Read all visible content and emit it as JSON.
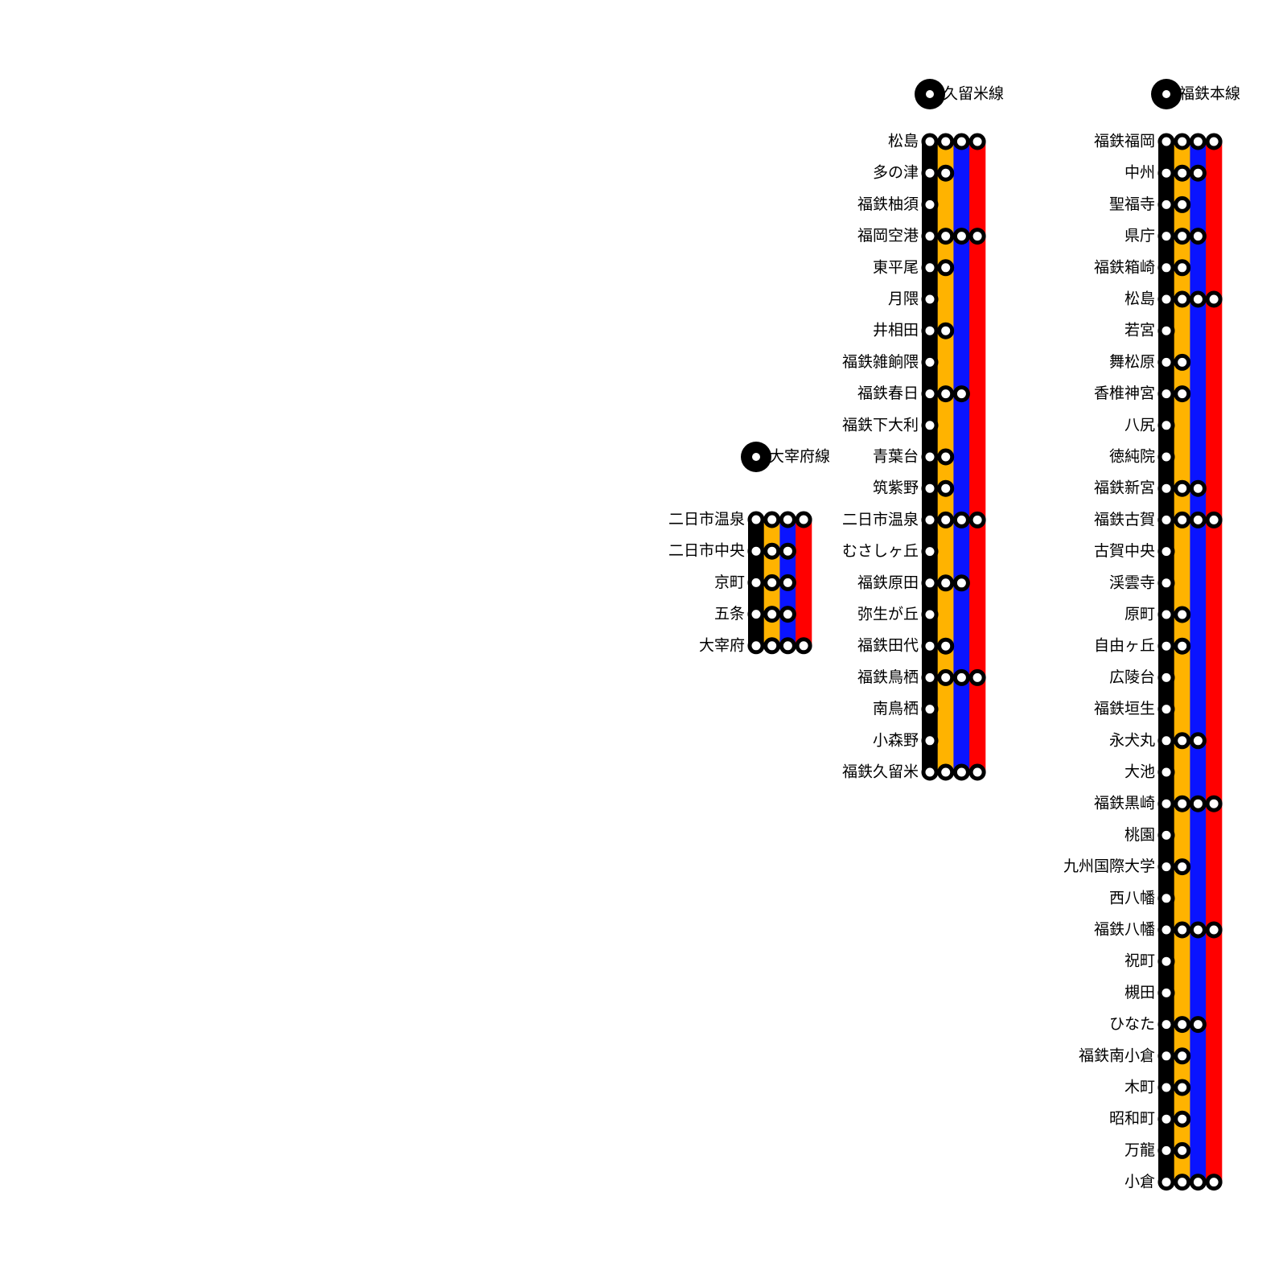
{
  "lines": [
    {
      "name": "大宰府線",
      "stations": [
        {
          "name": "二日市温泉",
          "stops": 4
        },
        {
          "name": "二日市中央",
          "stops": 3
        },
        {
          "name": "京町",
          "stops": 3
        },
        {
          "name": "五条",
          "stops": 3
        },
        {
          "name": "大宰府",
          "stops": 4
        }
      ]
    },
    {
      "name": "久留米線",
      "stations": [
        {
          "name": "松島",
          "stops": 4
        },
        {
          "name": "多の津",
          "stops": 2
        },
        {
          "name": "福鉄柚須",
          "stops": 1
        },
        {
          "name": "福岡空港",
          "stops": 4
        },
        {
          "name": "東平尾",
          "stops": 2
        },
        {
          "name": "月隈",
          "stops": 1
        },
        {
          "name": "井相田",
          "stops": 2
        },
        {
          "name": "福鉄雑餉隈",
          "stops": 1
        },
        {
          "name": "福鉄春日",
          "stops": 3
        },
        {
          "name": "福鉄下大利",
          "stops": 1
        },
        {
          "name": "青葉台",
          "stops": 2
        },
        {
          "name": "筑紫野",
          "stops": 2
        },
        {
          "name": "二日市温泉",
          "stops": 4
        },
        {
          "name": "むさしヶ丘",
          "stops": 1
        },
        {
          "name": "福鉄原田",
          "stops": 3
        },
        {
          "name": "弥生が丘",
          "stops": 1
        },
        {
          "name": "福鉄田代",
          "stops": 2
        },
        {
          "name": "福鉄鳥栖",
          "stops": 4
        },
        {
          "name": "南鳥栖",
          "stops": 1
        },
        {
          "name": "小森野",
          "stops": 1
        },
        {
          "name": "福鉄久留米",
          "stops": 4
        }
      ]
    },
    {
      "name": "福鉄本線",
      "stations": [
        {
          "name": "福鉄福岡",
          "stops": 4
        },
        {
          "name": "中州",
          "stops": 3
        },
        {
          "name": "聖福寺",
          "stops": 2
        },
        {
          "name": "県庁",
          "stops": 3
        },
        {
          "name": "福鉄箱崎",
          "stops": 2
        },
        {
          "name": "松島",
          "stops": 4
        },
        {
          "name": "若宮",
          "stops": 1
        },
        {
          "name": "舞松原",
          "stops": 2
        },
        {
          "name": "香椎神宮",
          "stops": 2
        },
        {
          "name": "八尻",
          "stops": 1
        },
        {
          "name": "徳純院",
          "stops": 1
        },
        {
          "name": "福鉄新宮",
          "stops": 3
        },
        {
          "name": "福鉄古賀",
          "stops": 4
        },
        {
          "name": "古賀中央",
          "stops": 1
        },
        {
          "name": "渓雲寺",
          "stops": 1
        },
        {
          "name": "原町",
          "stops": 2
        },
        {
          "name": "自由ヶ丘",
          "stops": 2
        },
        {
          "name": "広陵台",
          "stops": 1
        },
        {
          "name": "福鉄垣生",
          "stops": 1
        },
        {
          "name": "永犬丸",
          "stops": 3
        },
        {
          "name": "大池",
          "stops": 1
        },
        {
          "name": "福鉄黒崎",
          "stops": 4
        },
        {
          "name": "桃園",
          "stops": 1
        },
        {
          "name": "九州国際大学",
          "stops": 2
        },
        {
          "name": "西八幡",
          "stops": 1
        },
        {
          "name": "福鉄八幡",
          "stops": 4
        },
        {
          "name": "祝町",
          "stops": 1
        },
        {
          "name": "槻田",
          "stops": 1
        },
        {
          "name": "ひなた",
          "stops": 3
        },
        {
          "name": "福鉄南小倉",
          "stops": 2
        },
        {
          "name": "木町",
          "stops": 2
        },
        {
          "name": "昭和町",
          "stops": 2
        },
        {
          "name": "万龍",
          "stops": 2
        },
        {
          "name": "小倉",
          "stops": 4
        }
      ]
    }
  ]
}
